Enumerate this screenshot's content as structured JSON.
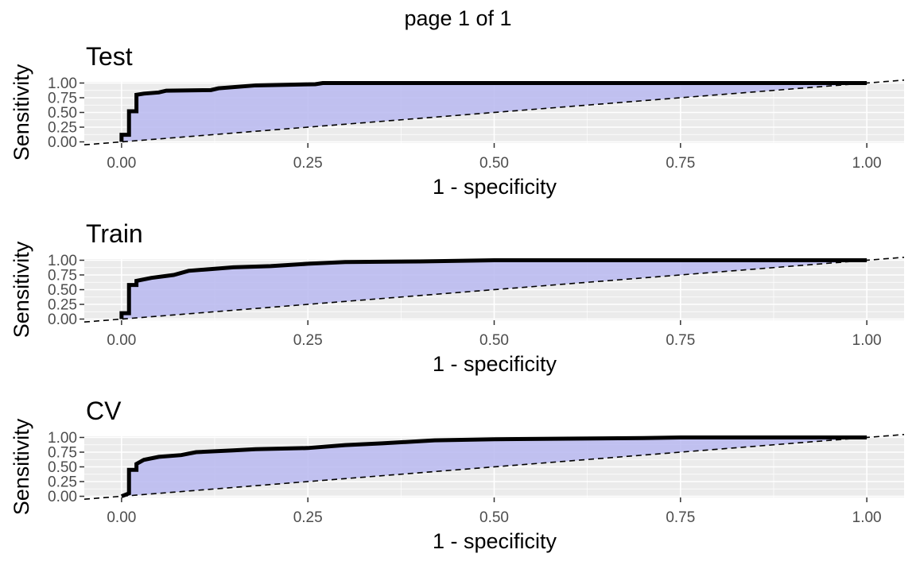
{
  "page_title": "page 1 of 1",
  "colors": {
    "panel_background": "#EBEBEB",
    "gridline": "#FFFFFF",
    "area_fill": "#B8B8F0",
    "roc_line": "#000000",
    "diagonal": "#000000"
  },
  "chart_data": [
    {
      "type": "line",
      "title": "Test",
      "xlabel": "1 - specificity",
      "ylabel": "Sensitivity",
      "xlim": [
        -0.05,
        1.05
      ],
      "ylim": [
        -0.02,
        1.02
      ],
      "x_ticks": [
        0,
        0.25,
        0.5,
        0.75,
        1
      ],
      "x_tick_labels": [
        "0.00",
        "0.25",
        "0.50",
        "0.75",
        "1.00"
      ],
      "y_ticks": [
        0,
        0.25,
        0.5,
        0.75,
        1
      ],
      "y_tick_labels": [
        "0.00",
        "0.25",
        "0.50",
        "0.75",
        "1.00"
      ],
      "grid": true,
      "area_under_curve_filled": true,
      "reference_line": "diagonal dashed",
      "x": [
        0,
        0,
        0.01,
        0.01,
        0.02,
        0.02,
        0.03,
        0.05,
        0.06,
        0.12,
        0.13,
        0.18,
        0.26,
        0.27,
        1
      ],
      "y": [
        0,
        0.12,
        0.12,
        0.52,
        0.52,
        0.8,
        0.82,
        0.84,
        0.87,
        0.88,
        0.91,
        0.96,
        0.98,
        1,
        1
      ]
    },
    {
      "type": "line",
      "title": "Train",
      "xlabel": "1 - specificity",
      "ylabel": "Sensitivity",
      "xlim": [
        -0.05,
        1.05
      ],
      "ylim": [
        -0.02,
        1.02
      ],
      "x_ticks": [
        0,
        0.25,
        0.5,
        0.75,
        1
      ],
      "x_tick_labels": [
        "0.00",
        "0.25",
        "0.50",
        "0.75",
        "1.00"
      ],
      "y_ticks": [
        0,
        0.25,
        0.5,
        0.75,
        1
      ],
      "y_tick_labels": [
        "0.00",
        "0.25",
        "0.50",
        "0.75",
        "1.00"
      ],
      "grid": true,
      "area_under_curve_filled": true,
      "reference_line": "diagonal dashed",
      "x": [
        0,
        0,
        0.01,
        0.01,
        0.02,
        0.02,
        0.04,
        0.07,
        0.09,
        0.12,
        0.15,
        0.2,
        0.25,
        0.3,
        0.4,
        0.5,
        1
      ],
      "y": [
        0,
        0.1,
        0.1,
        0.58,
        0.58,
        0.65,
        0.7,
        0.75,
        0.82,
        0.85,
        0.88,
        0.9,
        0.94,
        0.97,
        0.98,
        1,
        1
      ]
    },
    {
      "type": "line",
      "title": "CV",
      "xlabel": "1 - specificity",
      "ylabel": "Sensitivity",
      "xlim": [
        -0.05,
        1.05
      ],
      "ylim": [
        -0.02,
        1.02
      ],
      "x_ticks": [
        0,
        0.25,
        0.5,
        0.75,
        1
      ],
      "x_tick_labels": [
        "0.00",
        "0.25",
        "0.50",
        "0.75",
        "1.00"
      ],
      "y_ticks": [
        0,
        0.25,
        0.5,
        0.75,
        1
      ],
      "y_tick_labels": [
        "0.00",
        "0.25",
        "0.50",
        "0.75",
        "1.00"
      ],
      "grid": true,
      "area_under_curve_filled": true,
      "reference_line": "diagonal dashed",
      "x": [
        0,
        0.01,
        0.01,
        0.02,
        0.02,
        0.03,
        0.05,
        0.08,
        0.1,
        0.15,
        0.18,
        0.25,
        0.3,
        0.35,
        0.42,
        0.5,
        0.7,
        0.75,
        1
      ],
      "y": [
        0,
        0.05,
        0.45,
        0.45,
        0.55,
        0.62,
        0.67,
        0.7,
        0.75,
        0.78,
        0.8,
        0.82,
        0.87,
        0.9,
        0.95,
        0.97,
        0.99,
        1,
        1
      ]
    }
  ]
}
